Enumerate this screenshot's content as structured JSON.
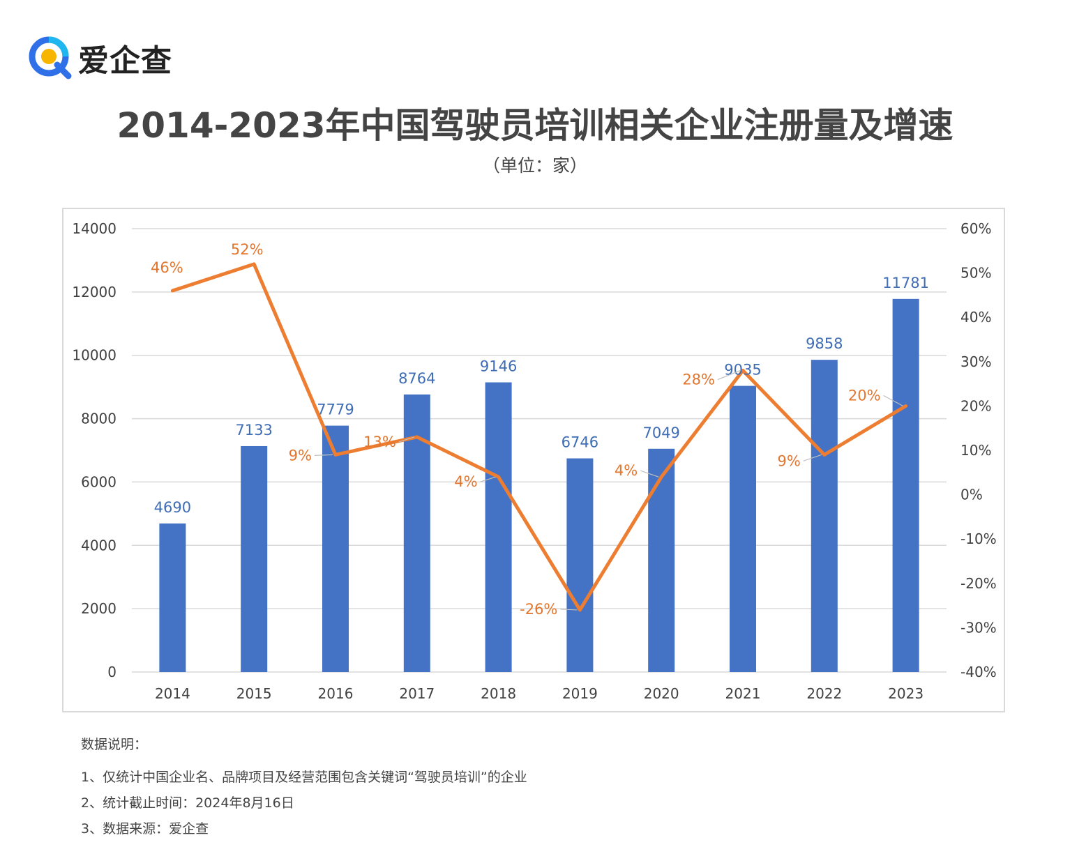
{
  "brand": {
    "name": "爱企查",
    "logo_icon": "magnifier-q-icon"
  },
  "title": "2014-2023年中国驾驶员培训相关企业注册量及增速",
  "subtitle": "（单位：家）",
  "colors": {
    "bar": "#4472c4",
    "line": "#ed7d31",
    "bar_label": "#3f6db5",
    "line_label": "#e2762f",
    "grid": "#d9d9d9",
    "axis_text": "#404040"
  },
  "chart_data": {
    "type": "bar",
    "categories": [
      "2014",
      "2015",
      "2016",
      "2017",
      "2018",
      "2019",
      "2020",
      "2021",
      "2022",
      "2023"
    ],
    "series": [
      {
        "name": "注册量",
        "type": "bar",
        "axis": "left",
        "values": [
          4690,
          7133,
          7779,
          8764,
          9146,
          6746,
          7049,
          9035,
          9858,
          11781
        ],
        "labels": [
          "4690",
          "7133",
          "7779",
          "8764",
          "9146",
          "6746",
          "7049",
          "9035",
          "9858",
          "11781"
        ]
      },
      {
        "name": "增速",
        "type": "line",
        "axis": "right",
        "values": [
          46,
          52,
          9,
          13,
          4,
          -26,
          4,
          28,
          9,
          20
        ],
        "labels": [
          "46%",
          "52%",
          "9%",
          "13%",
          "4%",
          "-26%",
          "4%",
          "28%",
          "9%",
          "20%"
        ]
      }
    ],
    "y_left": {
      "min": 0,
      "max": 14000,
      "ticks": [
        "0",
        "2000",
        "4000",
        "6000",
        "8000",
        "10000",
        "12000",
        "14000"
      ]
    },
    "y_right": {
      "min": -40,
      "max": 60,
      "ticks": [
        "-40%",
        "-30%",
        "-20%",
        "-10%",
        "0%",
        "10%",
        "20%",
        "30%",
        "40%",
        "50%",
        "60%"
      ]
    },
    "grid": true
  },
  "notes": {
    "heading": "数据说明：",
    "items": [
      "1、仅统计中国企业名、品牌项目及经营范围包含关键词“驾驶员培训”的企业",
      "2、统计截止时间：2024年8月16日",
      "3、数据来源：爱企查"
    ]
  }
}
